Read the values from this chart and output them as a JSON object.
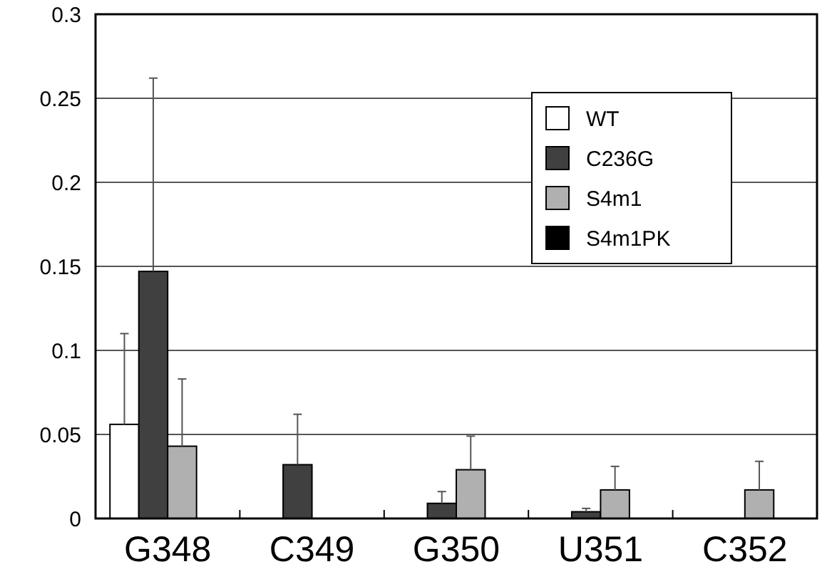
{
  "chart_data": {
    "type": "bar",
    "categories": [
      "G348",
      "C349",
      "G350",
      "U351",
      "C352"
    ],
    "series": [
      {
        "name": "WT",
        "color": "#ffffff",
        "values": [
          0.056,
          null,
          null,
          null,
          null
        ],
        "errors": [
          [
            0.056,
            0.11
          ],
          null,
          null,
          null,
          null
        ]
      },
      {
        "name": "C236G",
        "color": "#404040",
        "values": [
          0.147,
          0.032,
          0.009,
          0.004,
          null
        ],
        "errors": [
          [
            0.147,
            0.262
          ],
          [
            0.032,
            0.062
          ],
          [
            0.009,
            0.016
          ],
          [
            0.004,
            0.006
          ],
          null
        ]
      },
      {
        "name": "S4m1",
        "color": "#b0b0b0",
        "values": [
          0.043,
          null,
          0.029,
          0.017,
          0.017
        ],
        "errors": [
          [
            0.043,
            0.083
          ],
          null,
          [
            0.029,
            0.049
          ],
          [
            0.017,
            0.031
          ],
          [
            0.017,
            0.034
          ]
        ]
      },
      {
        "name": "S4m1PK",
        "color": "#000000",
        "values": [
          null,
          null,
          null,
          null,
          null
        ]
      }
    ],
    "ylim": [
      0,
      0.3
    ],
    "yticks": [
      0,
      0.05,
      0.1,
      0.15,
      0.2,
      0.25,
      0.3
    ],
    "grid": "y",
    "legend": "top right"
  }
}
